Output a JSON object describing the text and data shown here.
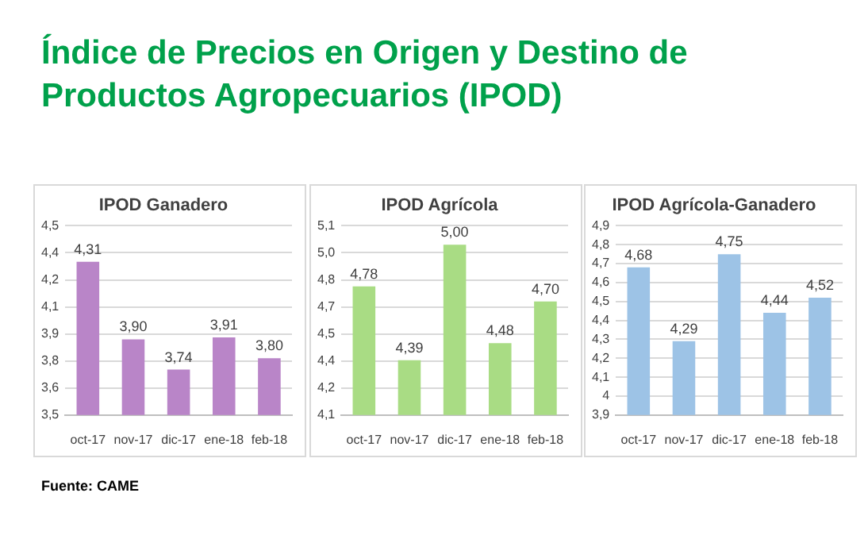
{
  "chart_data": [
    {
      "type": "other",
      "title": "Índice de Precios en Origen y Destino de Productos Agropecuarios (IPOD)",
      "annotations": [
        "Fuente: CAME"
      ]
    },
    {
      "type": "bar",
      "title": "IPOD Ganadero",
      "categories": [
        "oct-17",
        "nov-17",
        "dic-17",
        "ene-18",
        "feb-18"
      ],
      "values": [
        4.31,
        3.9,
        3.74,
        3.91,
        3.8
      ],
      "value_labels": [
        "4,31",
        "3,90",
        "3,74",
        "3,91",
        "3,80"
      ],
      "color": "#b985c8",
      "ylim": [
        3.5,
        4.5
      ],
      "yticks": [
        {
          "value": 3.5,
          "label": "3,5"
        },
        {
          "value": 3.643,
          "label": "3,6"
        },
        {
          "value": 3.786,
          "label": "3,8"
        },
        {
          "value": 3.929,
          "label": "3,9"
        },
        {
          "value": 4.071,
          "label": "4,1"
        },
        {
          "value": 4.214,
          "label": "4,2"
        },
        {
          "value": 4.357,
          "label": "4,4"
        },
        {
          "value": 4.5,
          "label": "4,5"
        }
      ],
      "grid": "y"
    },
    {
      "type": "bar",
      "title": "IPOD Agrícola",
      "categories": [
        "oct-17",
        "nov-17",
        "dic-17",
        "ene-18",
        "feb-18"
      ],
      "values": [
        4.78,
        4.39,
        5.0,
        4.48,
        4.7
      ],
      "value_labels": [
        "4,78",
        "4,39",
        "5,00",
        "4,48",
        "4,70"
      ],
      "color": "#a9dc84",
      "ylim": [
        4.1,
        5.1
      ],
      "yticks": [
        {
          "value": 4.1,
          "label": "4,1"
        },
        {
          "value": 4.243,
          "label": "4,2"
        },
        {
          "value": 4.386,
          "label": "4,4"
        },
        {
          "value": 4.529,
          "label": "4,5"
        },
        {
          "value": 4.671,
          "label": "4,7"
        },
        {
          "value": 4.814,
          "label": "4,8"
        },
        {
          "value": 4.957,
          "label": "5,0"
        },
        {
          "value": 5.1,
          "label": "5,1"
        }
      ],
      "grid": "y"
    },
    {
      "type": "bar",
      "title": "IPOD Agrícola-Ganadero",
      "categories": [
        "oct-17",
        "nov-17",
        "dic-17",
        "ene-18",
        "feb-18"
      ],
      "values": [
        4.68,
        4.29,
        4.75,
        4.44,
        4.52
      ],
      "value_labels": [
        "4,68",
        "4,29",
        "4,75",
        "4,44",
        "4,52"
      ],
      "color": "#9dc3e6",
      "ylim": [
        3.9,
        4.9
      ],
      "yticks": [
        {
          "value": 3.9,
          "label": "3,9"
        },
        {
          "value": 4.0,
          "label": "4"
        },
        {
          "value": 4.1,
          "label": "4,1"
        },
        {
          "value": 4.2,
          "label": "4,2"
        },
        {
          "value": 4.3,
          "label": "4,3"
        },
        {
          "value": 4.4,
          "label": "4,4"
        },
        {
          "value": 4.5,
          "label": "4,5"
        },
        {
          "value": 4.6,
          "label": "4,6"
        },
        {
          "value": 4.7,
          "label": "4,7"
        },
        {
          "value": 4.8,
          "label": "4,8"
        },
        {
          "value": 4.9,
          "label": "4,9"
        }
      ],
      "grid": "y"
    }
  ]
}
